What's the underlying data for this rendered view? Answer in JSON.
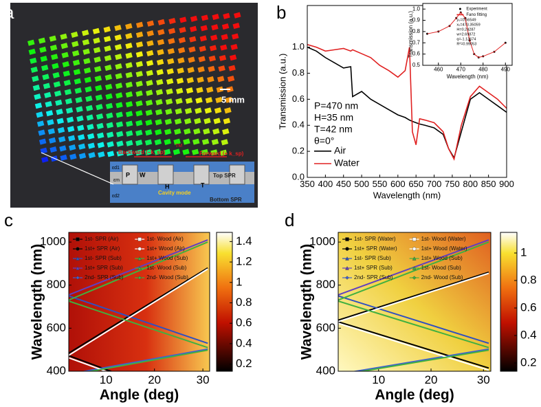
{
  "panel_labels": [
    "a",
    "b",
    "c",
    "d"
  ],
  "photo": {
    "scale_bar": "5 mm",
    "schematic": {
      "backward": "Backward (−k_sp)",
      "forward": "Forward (+ k_sp)",
      "tm": "TM",
      "top": "Top SPR",
      "bottom": "Bottom SPR",
      "cavity": "Cavity mode",
      "p": "P",
      "w": "W",
      "h": "H",
      "t": "T",
      "ed1": "εd1",
      "em": "εm",
      "ed2": "εd2"
    }
  },
  "chart_data": [
    {
      "type": "line",
      "xlabel": "Wavelength (nm)",
      "ylabel": "Transmission (a.u.)",
      "x": [
        350,
        375,
        400,
        425,
        450,
        470,
        475,
        500,
        525,
        550,
        575,
        600,
        620,
        632,
        640,
        650,
        660,
        675,
        700,
        725,
        740,
        755,
        775,
        800,
        825,
        850,
        875,
        900
      ],
      "xlim": [
        350,
        900
      ],
      "xticks": [
        350,
        400,
        450,
        500,
        550,
        600,
        650,
        700,
        750,
        800,
        850,
        900
      ],
      "ylim": [
        0,
        1.32
      ],
      "yticks": [
        {
          "value": 0,
          "label": "0.0"
        },
        0.2,
        0.4,
        0.6,
        0.8,
        {
          "value": 1,
          "label": "1.0"
        }
      ],
      "annotations": [
        "P=470 nm",
        "H=35 nm",
        "T=42 nm",
        "θ=0°"
      ],
      "legend": "lower left",
      "series": [
        {
          "name": "Air",
          "color": "#000000",
          "values": [
            1.0,
            0.97,
            0.92,
            0.88,
            0.84,
            0.85,
            0.62,
            0.66,
            0.6,
            0.56,
            0.52,
            0.48,
            0.46,
            0.44,
            0.43,
            0.42,
            0.41,
            0.4,
            0.38,
            0.33,
            0.22,
            0.15,
            0.35,
            0.6,
            0.65,
            0.6,
            0.55,
            0.5
          ]
        },
        {
          "name": "Water",
          "color": "#e02020",
          "values": [
            1.02,
            1.0,
            0.97,
            0.98,
            0.99,
            0.97,
            0.98,
            0.95,
            0.92,
            0.86,
            0.82,
            0.77,
            0.82,
            1.0,
            0.35,
            0.25,
            0.45,
            0.44,
            0.42,
            0.35,
            0.22,
            0.14,
            0.4,
            0.62,
            0.7,
            0.65,
            0.6,
            0.53
          ]
        }
      ]
    },
    {
      "type": "line",
      "xlabel": "Wavelength (nm)",
      "ylabel": "Transmission (a.u.)",
      "x": [
        455,
        460,
        465,
        468,
        470,
        472,
        474,
        476,
        478,
        480,
        485,
        490
      ],
      "xlim": [
        453,
        493
      ],
      "xticks": [
        460,
        470,
        480,
        490
      ],
      "ylim": [
        0.5,
        1.05
      ],
      "yticks": [
        0.5,
        0.6,
        0.7,
        0.8,
        0.9,
        {
          "value": 1,
          "label": "1.0"
        }
      ],
      "legend": "upper right",
      "annotations": [
        "y₀=0.56549",
        "x₀=473.35059",
        "H=0.24287",
        "w=2.69872",
        "q=-1.13674",
        "R²=0.99053"
      ],
      "series": [
        {
          "name": "Experiment",
          "color": "#000000",
          "marker": "dot",
          "values": [
            0.78,
            0.8,
            0.85,
            0.92,
            0.97,
            0.92,
            0.72,
            0.6,
            0.57,
            0.58,
            0.62,
            0.7
          ]
        },
        {
          "name": "Fano fitting",
          "color": "#e02020",
          "marker": "none",
          "values": [
            0.78,
            0.8,
            0.85,
            0.92,
            0.97,
            0.92,
            0.72,
            0.6,
            0.57,
            0.58,
            0.62,
            0.7
          ]
        }
      ]
    },
    {
      "type": "heatmap",
      "xlabel": "Angle (deg)",
      "ylabel": "Wavelength (nm)",
      "x": [
        2,
        31
      ],
      "xlim": [
        2.3,
        31.4
      ],
      "xticks": [
        10,
        20,
        30
      ],
      "ylim": [
        400,
        1045
      ],
      "yticks": [
        400,
        600,
        800,
        1000
      ],
      "clim": [
        0.13,
        1.49
      ],
      "cticks": [
        0.2,
        0.4,
        0.6,
        0.8,
        1,
        1.2,
        1.4
      ],
      "series": [
        {
          "name": "1st- SPR (Air)",
          "color": "#000000",
          "marker": "square",
          "values": [
            475,
            233
          ]
        },
        {
          "name": "1st+ SPR (Air)",
          "color": "#000000",
          "marker": "circle",
          "values": [
            480,
            880
          ]
        },
        {
          "name": "1st- SPR (Sub)",
          "color": "#3050c0",
          "marker": "triangle",
          "values": [
            752,
            530
          ]
        },
        {
          "name": "1st+ SPR (Sub)",
          "color": "#6040c0",
          "marker": "triangle",
          "values": [
            752,
            1010
          ]
        },
        {
          "name": "2nd- SPR (Sub)",
          "color": "#4060d0",
          "marker": "diamond",
          "values": [
            385,
            503
          ]
        },
        {
          "name": "1st- Wood (Air)",
          "color": "#ffffff",
          "marker": "square",
          "values": [
            465,
            228
          ]
        },
        {
          "name": "1st+ Wood (Air)",
          "color": "#ffffff",
          "marker": "circle",
          "values": [
            470,
            875
          ]
        },
        {
          "name": "1st+ Wood (Sub)",
          "color": "#40b040",
          "marker": "triangle",
          "values": [
            728,
            1000
          ]
        },
        {
          "name": "1st- Wood (Sub)",
          "color": "#40b040",
          "marker": "triangle",
          "values": [
            728,
            510
          ]
        },
        {
          "name": "2nd- Wood (Sub)",
          "color": "#40b040",
          "marker": "diamond",
          "values": [
            380,
            498
          ]
        }
      ]
    },
    {
      "type": "heatmap",
      "xlabel": "Angle (deg)",
      "ylabel": "Wavelength (nm)",
      "x": [
        2,
        31
      ],
      "xlim": [
        2.3,
        31.4
      ],
      "xticks": [
        10,
        20,
        30
      ],
      "ylim": [
        400,
        1045
      ],
      "yticks": [
        400,
        600,
        800,
        1000
      ],
      "clim": [
        0.14,
        1.15
      ],
      "cticks": [
        0.2,
        0.4,
        0.6,
        0.8,
        1
      ],
      "series": [
        {
          "name": "1st- SPR (Water)",
          "color": "#000000",
          "marker": "square",
          "values": [
            632,
            415
          ]
        },
        {
          "name": "1st+ SPR (Water)",
          "color": "#000000",
          "marker": "circle",
          "values": [
            635,
            860
          ]
        },
        {
          "name": "1st- SPR (Sub)",
          "color": "#3050c0",
          "marker": "triangle",
          "values": [
            752,
            530
          ]
        },
        {
          "name": "1st+ SPR (Sub)",
          "color": "#6040c0",
          "marker": "triangle",
          "values": [
            752,
            1010
          ]
        },
        {
          "name": "2nd- SPR (Sub)",
          "color": "#4060d0",
          "marker": "diamond",
          "values": [
            385,
            503
          ]
        },
        {
          "name": "1st- Wood (Water)",
          "color": "#ffffff",
          "marker": "square",
          "values": [
            625,
            405
          ]
        },
        {
          "name": "1st+ Wood (Water)",
          "color": "#ffffff",
          "marker": "circle",
          "values": [
            628,
            855
          ]
        },
        {
          "name": "1st+ Wood (Sub)",
          "color": "#40b040",
          "marker": "triangle",
          "values": [
            728,
            1000
          ]
        },
        {
          "name": "1st- Wood (Sub)",
          "color": "#40b040",
          "marker": "triangle",
          "values": [
            728,
            510
          ]
        },
        {
          "name": "2nd- Wood (Sub)",
          "color": "#40b040",
          "marker": "diamond",
          "values": [
            380,
            498
          ]
        }
      ]
    }
  ]
}
